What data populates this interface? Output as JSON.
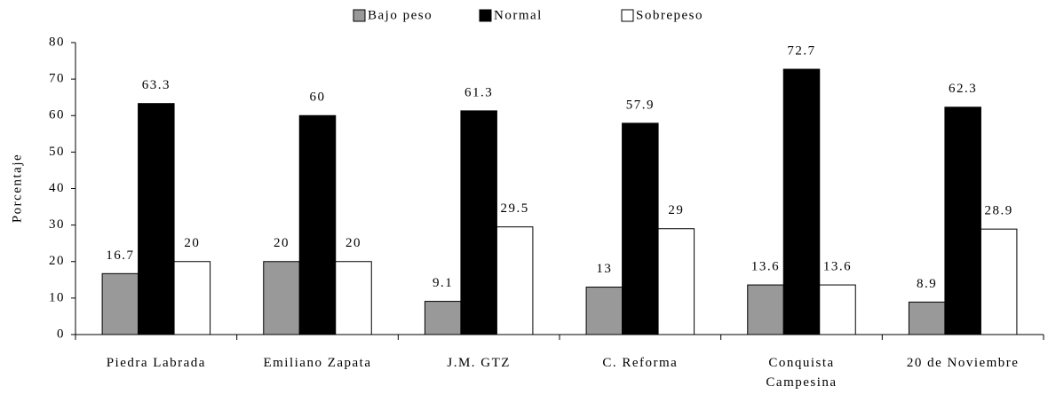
{
  "chart_data": {
    "type": "bar",
    "y_label": "Porcentaje",
    "categories": [
      "Piedra Labrada",
      "Emiliano Zapata",
      "J.M. GTZ",
      "C. Reforma",
      "Conquista\nCampesina",
      "20 de Noviembre"
    ],
    "series": [
      {
        "name": "Bajo peso",
        "color": "#999999",
        "values": [
          16.7,
          20,
          9.1,
          13,
          13.6,
          8.9
        ]
      },
      {
        "name": "Normal",
        "color": "#000000",
        "values": [
          63.3,
          60,
          61.3,
          57.9,
          72.7,
          62.3
        ]
      },
      {
        "name": "Sobrepeso",
        "color": "#ffffff",
        "values": [
          20,
          20,
          29.5,
          29,
          13.6,
          28.9
        ]
      }
    ],
    "ylim": [
      0,
      80
    ],
    "yticks": [
      0,
      10,
      20,
      30,
      40,
      50,
      60,
      70,
      80
    ]
  }
}
